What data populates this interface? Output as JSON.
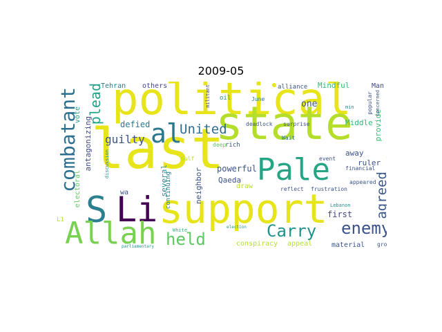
{
  "title": "2009-05",
  "colors": {
    "yellow": "#e7e419",
    "lime": "#b5de2b",
    "green": "#5ec962",
    "teal": "#21918c",
    "blue": "#3b528b",
    "purple": "#440154",
    "mint": "#35b779"
  },
  "words": [
    {
      "text": "last",
      "color": "#e7e419"
    },
    {
      "text": "political",
      "color": "#e7e419"
    },
    {
      "text": "state",
      "color": "#b5de2b"
    },
    {
      "text": "support",
      "color": "#e7e419"
    },
    {
      "text": "Li",
      "color": "#440154"
    },
    {
      "text": "S",
      "color": "#2c7f8e"
    },
    {
      "text": "Allah",
      "color": "#79d151"
    },
    {
      "text": "Pale",
      "color": "#25a584"
    },
    {
      "text": "al",
      "color": "#2a788e"
    },
    {
      "text": "combatant",
      "color": "#2c6f8e"
    },
    {
      "text": "held",
      "color": "#5ec962"
    },
    {
      "text": "Carry",
      "color": "#21918c"
    },
    {
      "text": "enemy",
      "color": "#3b528b"
    },
    {
      "text": "United",
      "color": "#2f6c8e"
    },
    {
      "text": "plead",
      "color": "#20a386"
    },
    {
      "text": "agreed",
      "color": "#39568c"
    },
    {
      "text": "guilty",
      "color": "#3b528b"
    },
    {
      "text": "defied",
      "color": "#2a788e"
    },
    {
      "text": "antagonizing",
      "color": "#3e4a89"
    },
    {
      "text": "vote",
      "color": "#1f9e89"
    },
    {
      "text": "electoral",
      "color": "#5ec962"
    },
    {
      "text": "Tehran",
      "color": "#2a788e"
    },
    {
      "text": "others",
      "color": "#414487"
    },
    {
      "text": "Mindful",
      "color": "#35b779"
    },
    {
      "text": "one",
      "color": "#3b528b"
    },
    {
      "text": "Middle",
      "color": "#35b779"
    },
    {
      "text": "provide",
      "color": "#3dbc74"
    },
    {
      "text": "ruler",
      "color": "#3b528b"
    },
    {
      "text": "away",
      "color": "#3b528b"
    },
    {
      "text": "historic",
      "color": "#b5de2b"
    },
    {
      "text": "first",
      "color": "#414487"
    },
    {
      "text": "powerful",
      "color": "#3b528b"
    },
    {
      "text": "Qaeda",
      "color": "#3b528b"
    },
    {
      "text": "draw",
      "color": "#b5de2b"
    },
    {
      "text": "neighbor",
      "color": "#3b528b"
    },
    {
      "text": "several",
      "color": "#21918c"
    },
    {
      "text": "wa",
      "color": "#3b528b"
    },
    {
      "text": "continuing",
      "color": "#2a788e"
    },
    {
      "text": "conspiracy",
      "color": "#b5de2b"
    },
    {
      "text": "appeal",
      "color": "#b5de2b"
    },
    {
      "text": "material",
      "color": "#3b528b"
    },
    {
      "text": "Man",
      "color": "#414487"
    },
    {
      "text": "militant",
      "color": "#414487"
    },
    {
      "text": "oil",
      "color": "#21918c"
    },
    {
      "text": "June",
      "color": "#2a788e"
    },
    {
      "text": "alliance",
      "color": "#3b528b"
    },
    {
      "text": "discussion",
      "color": "#21918c"
    },
    {
      "text": "deadlock",
      "color": "#3b528b"
    },
    {
      "text": "surprise",
      "color": "#3b528b"
    },
    {
      "text": "Wait",
      "color": "#2a788e"
    },
    {
      "text": "deep",
      "color": "#5ec962"
    },
    {
      "text": "rich",
      "color": "#3b528b"
    },
    {
      "text": "Gulf",
      "color": "#b5de2b"
    },
    {
      "text": "event",
      "color": "#3b528b"
    },
    {
      "text": "financial",
      "color": "#3b528b"
    },
    {
      "text": "appeared",
      "color": "#3b528b"
    },
    {
      "text": "reflect",
      "color": "#3b528b"
    },
    {
      "text": "frustration",
      "color": "#3b528b"
    },
    {
      "text": "Lebanon",
      "color": "#21918c"
    },
    {
      "text": "min",
      "color": "#21918c"
    },
    {
      "text": "popular",
      "color": "#3b528b"
    },
    {
      "text": "concerned",
      "color": "#3b528b"
    },
    {
      "text": "group",
      "color": "#3b528b"
    },
    {
      "text": "election",
      "color": "#21918c"
    },
    {
      "text": "White",
      "color": "#35b779"
    },
    {
      "text": "parliamentary",
      "color": "#21918c"
    },
    {
      "text": "L1",
      "color": "#b5de2b"
    }
  ]
}
